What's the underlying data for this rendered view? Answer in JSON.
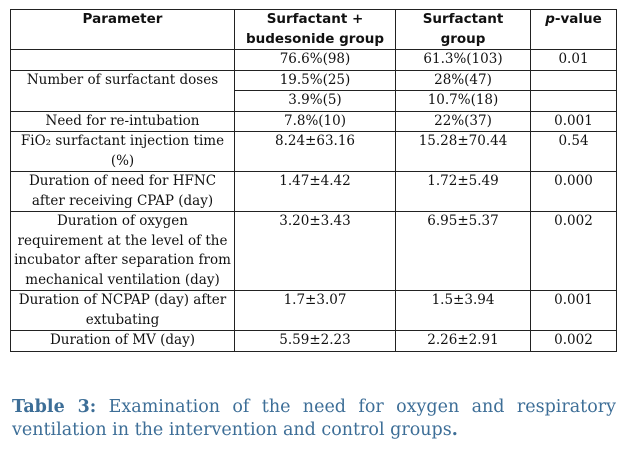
{
  "table": {
    "headers": {
      "parameter": "Parameter",
      "group1": "Surfactant + budesonide group",
      "group2": "Surfactant group",
      "p_prefix": "p",
      "p_suffix": "-value"
    },
    "rows": [
      {
        "parameter": "",
        "group1": "76.6%(98)",
        "group2": "61.3%(103)",
        "p": "0.01"
      },
      {
        "parameter": "Number of surfactant doses",
        "group1": "19.5%(25)",
        "group2": "28%(47)",
        "p": ""
      },
      {
        "parameter": "",
        "group1": "3.9%(5)",
        "group2": "10.7%(18)",
        "p": ""
      },
      {
        "parameter": "Need for re-intubation",
        "group1": "7.8%(10)",
        "group2": "22%(37)",
        "p": "0.001"
      },
      {
        "parameter": "FiO₂ surfactant injection time (%)",
        "group1": "8.24±63.16",
        "group2": "15.28±70.44",
        "p": "0.54"
      },
      {
        "parameter": "Duration of need for HFNC after receiving CPAP (day)",
        "group1": "1.47±4.42",
        "group2": "1.72±5.49",
        "p": "0.000"
      },
      {
        "parameter": "Duration of oxygen requirement at the level of the incubator after separation from mechanical ventilation (day)",
        "group1": "3.20±3.43",
        "group2": "6.95±5.37",
        "p": "0.002"
      },
      {
        "parameter": "Duration of NCPAP (day) after extubating",
        "group1": "1.7±3.07",
        "group2": "1.5±3.94",
        "p": "0.001"
      },
      {
        "parameter": "Duration of MV (day)",
        "group1": "5.59±2.23",
        "group2": "2.26±2.91",
        "p": "0.002"
      }
    ]
  },
  "caption": {
    "label": "Table 3:",
    "text": " Examination of the need for oxygen and respiratory ventilation in the intervention and control groups",
    "end": "."
  },
  "colors": {
    "caption": "#3d6e97",
    "border": "#222222"
  }
}
